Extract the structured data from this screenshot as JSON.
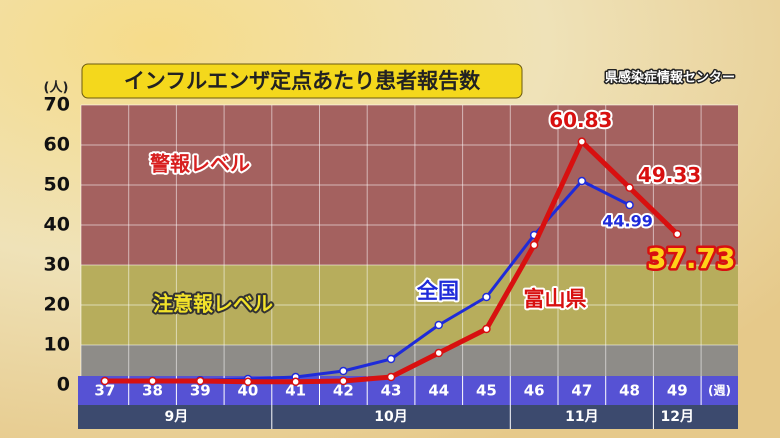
{
  "chart_data": {
    "type": "line",
    "title": "インフルエンザ定点あたり患者報告数",
    "source": "県感染症情報センター",
    "y_label": "(人)",
    "x_label": "(週)",
    "categories": [
      "37",
      "38",
      "39",
      "40",
      "41",
      "42",
      "43",
      "44",
      "45",
      "46",
      "47",
      "48",
      "49"
    ],
    "months": [
      {
        "label": "9月",
        "from": "37",
        "to": "40"
      },
      {
        "label": "10月",
        "from": "41",
        "to": "45"
      },
      {
        "label": "11月",
        "from": "46",
        "to": "48"
      },
      {
        "label": "12月",
        "from": "49",
        "to": "49"
      }
    ],
    "bands": [
      {
        "label": "警報レベル",
        "from": 30,
        "to": 70,
        "color": "#a4615f"
      },
      {
        "label": "注意報レベル",
        "from": 10,
        "to": 30,
        "color": "#b7ad5c"
      }
    ],
    "series": [
      {
        "name": "全国",
        "color": "#1f2bd9",
        "values": [
          1,
          1,
          1.2,
          1.5,
          2,
          3.5,
          6.5,
          15,
          22,
          37.5,
          51,
          44.99,
          null
        ],
        "value_labels": [
          null,
          null,
          null,
          null,
          null,
          null,
          null,
          null,
          null,
          null,
          null,
          "44.99",
          null
        ]
      },
      {
        "name": "富山県",
        "color": "#d81010",
        "values": [
          1,
          1,
          1,
          0.8,
          0.8,
          1,
          2,
          8,
          14,
          35,
          60.83,
          49.33,
          37.73
        ],
        "value_labels": [
          null,
          null,
          null,
          null,
          null,
          null,
          null,
          null,
          null,
          null,
          "60.83",
          "49.33",
          "37.73"
        ]
      }
    ],
    "ylim": [
      0,
      70
    ],
    "yticks": [
      0,
      10,
      20,
      30,
      40,
      50,
      60,
      70
    ],
    "grid": true
  }
}
